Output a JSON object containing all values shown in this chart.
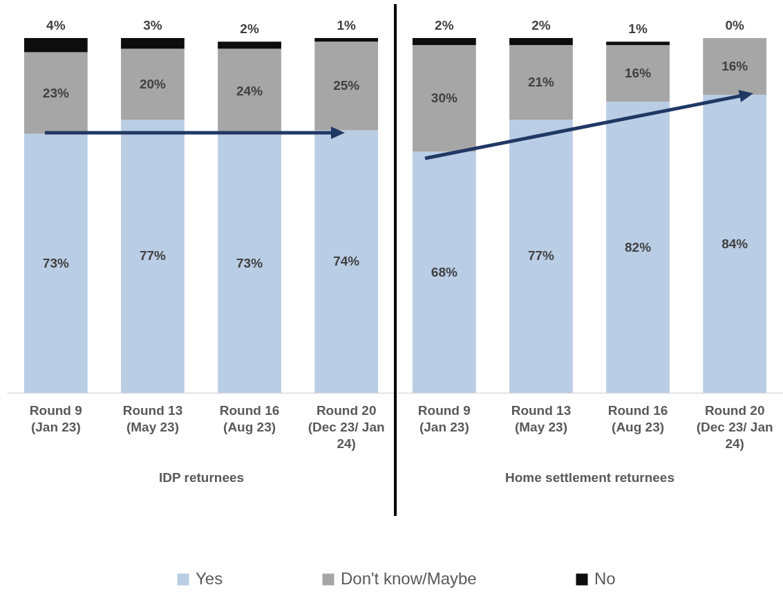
{
  "chart_data": [
    {
      "type": "bar",
      "stacked": true,
      "categories": [
        "Round 9 (Jan 23)",
        "Round 13 (May 23)",
        "Round 16 (Aug 23)",
        "Round 20 (Dec 23/ Jan 24)"
      ],
      "xlabel": "IDP returnees",
      "legend": "bottom",
      "series": [
        {
          "name": "Yes",
          "color": "#b9cde5",
          "values": [
            73,
            77,
            73,
            74
          ],
          "value_labels": [
            "73%",
            "77%",
            "73%",
            "74%"
          ]
        },
        {
          "name": "Don't know/Maybe",
          "color": "#a6a6a6",
          "values": [
            23,
            20,
            24,
            25
          ],
          "value_labels": [
            "23%",
            "20%",
            "24%",
            "25%"
          ]
        },
        {
          "name": "No",
          "color": "#0d0d0d",
          "values": [
            4,
            3,
            2,
            1
          ],
          "value_labels": [
            "4%",
            "3%",
            "2%",
            "1%"
          ]
        }
      ]
    },
    {
      "type": "bar",
      "stacked": true,
      "categories": [
        "Round 9 (Jan 23)",
        "Round 13 (May 23)",
        "Round 16 (Aug 23)",
        "Round 20 (Dec 23/ Jan 24)"
      ],
      "xlabel": "Home settlement returnees",
      "legend": "bottom",
      "series": [
        {
          "name": "Yes",
          "color": "#b9cde5",
          "values": [
            68,
            77,
            82,
            84
          ],
          "value_labels": [
            "68%",
            "77%",
            "82%",
            "84%"
          ]
        },
        {
          "name": "Don't know/Maybe",
          "color": "#a6a6a6",
          "values": [
            30,
            21,
            16,
            16
          ],
          "value_labels": [
            "30%",
            "21%",
            "16%",
            "16%"
          ]
        },
        {
          "name": "No",
          "color": "#0d0d0d",
          "values": [
            2,
            2,
            1,
            0
          ],
          "value_labels": [
            "2%",
            "2%",
            "1%",
            "0%"
          ]
        }
      ]
    }
  ]
}
